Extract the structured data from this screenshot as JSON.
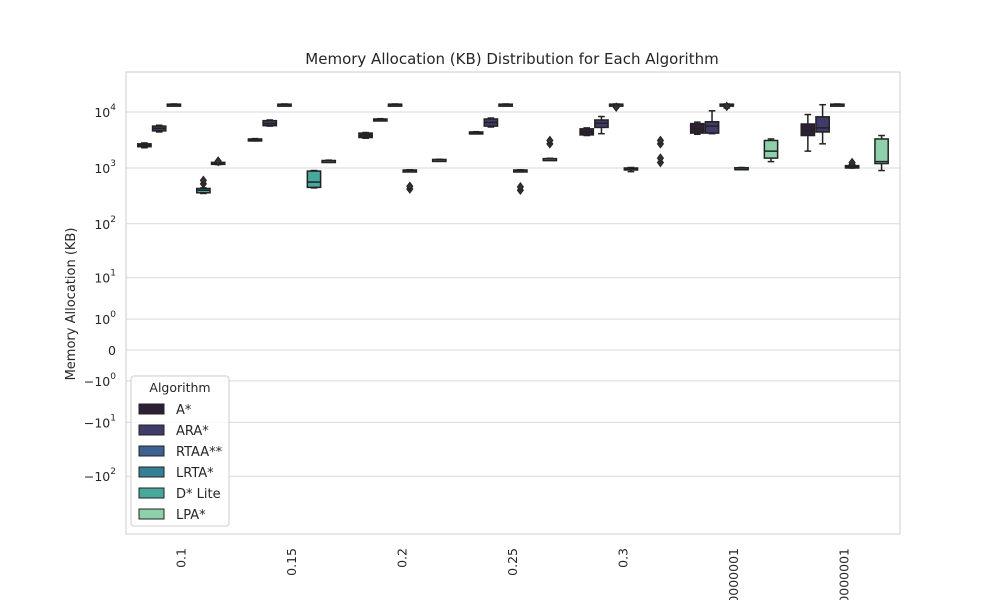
{
  "chart_data": {
    "type": "box",
    "title": "Memory Allocation (KB) Distribution for Each Algorithm",
    "xlabel": "",
    "ylabel": "Memory Allocation (KB)",
    "yscale": "symlog",
    "ylim": [
      -500,
      14000
    ],
    "grid": true,
    "categories": [
      "0.1",
      "0.15",
      "0.2",
      "0.25",
      "0.3",
      "0000001",
      "0000001"
    ],
    "y_ticks": [
      {
        "value": 10000,
        "label": "10^4"
      },
      {
        "value": 1000,
        "label": "10^3"
      },
      {
        "value": 100,
        "label": "10^2"
      },
      {
        "value": 10,
        "label": "10^1"
      },
      {
        "value": 1,
        "label": "10^0"
      },
      {
        "value": 0,
        "label": "0"
      },
      {
        "value": -1,
        "label": "−10^0"
      },
      {
        "value": -10,
        "label": "−10^1"
      },
      {
        "value": -100,
        "label": "−10^2"
      }
    ],
    "legend": {
      "title": "Algorithm",
      "placement": "lower-left"
    },
    "series": [
      {
        "name": "A*",
        "color": "#2d2036",
        "boxes": [
          {
            "q1": 2400,
            "median": 2550,
            "q3": 2700,
            "whislo": 2300,
            "whishi": 2800,
            "fliers": []
          },
          {
            "q1": 3100,
            "median": 3200,
            "q3": 3300,
            "whislo": 3050,
            "whishi": 3350,
            "fliers": []
          },
          {
            "q1": 3500,
            "median": 3900,
            "q3": 4200,
            "whislo": 3400,
            "whishi": 4300,
            "fliers": []
          },
          {
            "q1": 4200,
            "median": 4300,
            "q3": 4400,
            "whislo": 4150,
            "whishi": 4450,
            "fliers": []
          },
          {
            "q1": 3900,
            "median": 4400,
            "q3": 5000,
            "whislo": 3800,
            "whishi": 5200,
            "fliers": []
          },
          {
            "q1": 4200,
            "median": 5000,
            "q3": 6200,
            "whislo": 4000,
            "whishi": 6600,
            "fliers": []
          },
          {
            "q1": 3800,
            "median": 4600,
            "q3": 6100,
            "whislo": 2000,
            "whishi": 9000,
            "fliers": []
          }
        ]
      },
      {
        "name": "ARA*",
        "color": "#3f3b6b",
        "boxes": [
          {
            "q1": 4600,
            "median": 5100,
            "q3": 5600,
            "whislo": 4400,
            "whishi": 5800,
            "fliers": []
          },
          {
            "q1": 5700,
            "median": 6200,
            "q3": 7000,
            "whislo": 5600,
            "whishi": 7200,
            "fliers": []
          },
          {
            "q1": 7300,
            "median": 7400,
            "q3": 7500,
            "whislo": 7200,
            "whishi": 7600,
            "fliers": []
          },
          {
            "q1": 5600,
            "median": 6500,
            "q3": 7500,
            "whislo": 5400,
            "whishi": 7800,
            "fliers": []
          },
          {
            "q1": 5300,
            "median": 6300,
            "q3": 7200,
            "whislo": 4100,
            "whishi": 8300,
            "fliers": []
          },
          {
            "q1": 4200,
            "median": 5600,
            "q3": 6700,
            "whislo": 4100,
            "whishi": 10500,
            "fliers": []
          },
          {
            "q1": 4400,
            "median": 5200,
            "q3": 8200,
            "whislo": 2700,
            "whishi": 13500,
            "fliers": []
          }
        ]
      },
      {
        "name": "RTAA**",
        "color": "#3d6291",
        "boxes": [
          {
            "q1": 13400,
            "median": 13600,
            "q3": 13800,
            "whislo": 13300,
            "whishi": 13900,
            "fliers": []
          },
          {
            "q1": 13400,
            "median": 13600,
            "q3": 13800,
            "whislo": 13300,
            "whishi": 13900,
            "fliers": []
          },
          {
            "q1": 13400,
            "median": 13600,
            "q3": 13800,
            "whislo": 13300,
            "whishi": 13900,
            "fliers": []
          },
          {
            "q1": 13400,
            "median": 13600,
            "q3": 13800,
            "whislo": 13300,
            "whishi": 13900,
            "fliers": []
          },
          {
            "q1": 13400,
            "median": 13600,
            "q3": 13800,
            "whislo": 13300,
            "whishi": 13900,
            "fliers": [
              12200
            ]
          },
          {
            "q1": 13400,
            "median": 13600,
            "q3": 13800,
            "whislo": 11800,
            "whishi": 13900,
            "fliers": [
              12600
            ]
          },
          {
            "q1": 13400,
            "median": 13600,
            "q3": 13800,
            "whislo": 13300,
            "whishi": 13900,
            "fliers": []
          }
        ]
      },
      {
        "name": "LRTA*",
        "color": "#357f96",
        "boxes": [
          {
            "q1": 0,
            "median": 0,
            "q3": 0,
            "whislo": 0,
            "whishi": 0,
            "fliers": []
          },
          {
            "q1": 0,
            "median": 0,
            "q3": 0,
            "whislo": 0,
            "whishi": 0,
            "fliers": []
          },
          {
            "q1": 880,
            "median": 900,
            "q3": 920,
            "whislo": 870,
            "whishi": 930,
            "fliers": [
              420,
              470
            ]
          },
          {
            "q1": 880,
            "median": 900,
            "q3": 920,
            "whislo": 870,
            "whishi": 930,
            "fliers": [
              400,
              460
            ]
          },
          {
            "q1": 930,
            "median": 960,
            "q3": 1000,
            "whislo": 860,
            "whishi": 1020,
            "fliers": []
          },
          {
            "q1": 990,
            "median": 1000,
            "q3": 1010,
            "whislo": 980,
            "whishi": 1020,
            "fliers": []
          },
          {
            "q1": 1000,
            "median": 1050,
            "q3": 1100,
            "whislo": 1000,
            "whishi": 1150,
            "fliers": [
              1150,
              1250
            ]
          }
        ]
      },
      {
        "name": "D* Lite",
        "color": "#47a89c",
        "boxes": [
          {
            "q1": 360,
            "median": 400,
            "q3": 430,
            "whislo": 350,
            "whishi": 440,
            "fliers": [
              520,
              600
            ]
          },
          {
            "q1": 450,
            "median": 560,
            "q3": 880,
            "whislo": 440,
            "whishi": 900,
            "fliers": []
          },
          {
            "q1": 0,
            "median": 0,
            "q3": 0,
            "whislo": 0,
            "whishi": 0,
            "fliers": []
          },
          {
            "q1": 0,
            "median": 0,
            "q3": 0,
            "whislo": 0,
            "whishi": 0,
            "fliers": []
          },
          {
            "q1": 0,
            "median": 0,
            "q3": 0,
            "whislo": 0,
            "whishi": 0,
            "fliers": []
          },
          {
            "q1": 0,
            "median": 0,
            "q3": 0,
            "whislo": 0,
            "whishi": 0,
            "fliers": []
          },
          {
            "q1": 0,
            "median": 0,
            "q3": 0,
            "whislo": 0,
            "whishi": 0,
            "fliers": []
          }
        ]
      },
      {
        "name": "LPA*",
        "color": "#8ed0aa",
        "boxes": [
          {
            "q1": 1180,
            "median": 1220,
            "q3": 1260,
            "whislo": 1150,
            "whishi": 1280,
            "fliers": [
              1300,
              1330
            ]
          },
          {
            "q1": 1320,
            "median": 1340,
            "q3": 1360,
            "whislo": 1300,
            "whishi": 1380,
            "fliers": []
          },
          {
            "q1": 1380,
            "median": 1400,
            "q3": 1420,
            "whislo": 1370,
            "whishi": 1430,
            "fliers": []
          },
          {
            "q1": 1430,
            "median": 1450,
            "q3": 1470,
            "whislo": 1410,
            "whishi": 1490,
            "fliers": [
              2700,
              3100
            ]
          },
          {
            "q1": 0,
            "median": 0,
            "q3": 0,
            "whislo": 0,
            "whishi": 0,
            "fliers": [
              1250,
              1500,
              2700,
              3100
            ]
          },
          {
            "q1": 1500,
            "median": 2000,
            "q3": 3100,
            "whislo": 1300,
            "whishi": 3300,
            "fliers": []
          },
          {
            "q1": 1200,
            "median": 1300,
            "q3": 3300,
            "whislo": 900,
            "whishi": 3800,
            "fliers": []
          }
        ]
      }
    ]
  }
}
